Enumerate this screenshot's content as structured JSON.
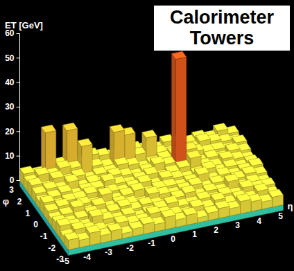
{
  "chart_data": {
    "type": "lego",
    "title": "Calorimeter Towers",
    "xlabel": "η",
    "ylabel": "φ",
    "zlabel": "ET [GeV]",
    "xlim": [
      -5,
      5
    ],
    "xticks": [
      -5,
      -4,
      -3,
      -2,
      -1,
      0,
      1,
      2,
      3,
      4,
      5
    ],
    "ylim": [
      -3,
      3
    ],
    "yticks": [
      -3,
      -2,
      -1,
      0,
      1,
      2,
      3
    ],
    "zlim": [
      0,
      60
    ],
    "zticks": [
      0,
      10,
      20,
      30,
      40,
      50,
      60
    ],
    "x_edges": [
      -5,
      -4.5,
      -4,
      -3.5,
      -3,
      -2.5,
      -2,
      -1.5,
      -1,
      -0.5,
      0,
      0.5,
      1,
      1.5,
      2,
      2.5,
      3,
      3.5,
      4,
      4.5,
      5
    ],
    "y_edges": [
      -3,
      -2.5,
      -2,
      -1.5,
      -1,
      -0.5,
      0,
      0.5,
      1,
      1.5,
      2,
      2.5,
      3
    ],
    "values": [
      [
        4,
        3,
        5,
        3,
        4,
        2,
        3,
        4,
        3,
        5,
        3,
        4,
        2,
        3,
        4,
        3,
        5,
        4,
        3,
        4
      ],
      [
        3,
        5,
        4,
        3,
        2,
        4,
        3,
        3,
        5,
        4,
        3,
        2,
        4,
        3,
        5,
        3,
        4,
        3,
        5,
        3
      ],
      [
        5,
        4,
        3,
        6,
        4,
        3,
        4,
        2,
        3,
        4,
        5,
        3,
        3,
        4,
        3,
        4,
        3,
        5,
        4,
        4
      ],
      [
        4,
        3,
        4,
        5,
        3,
        4,
        5,
        3,
        4,
        3,
        2,
        4,
        5,
        3,
        4,
        3,
        6,
        3,
        4,
        3
      ],
      [
        3,
        4,
        6,
        3,
        5,
        3,
        4,
        3,
        2,
        5,
        4,
        3,
        4,
        5,
        3,
        4,
        3,
        4,
        5,
        4
      ],
      [
        4,
        5,
        3,
        4,
        3,
        6,
        3,
        4,
        5,
        3,
        4,
        4,
        3,
        4,
        6,
        3,
        4,
        3,
        4,
        5
      ],
      [
        5,
        3,
        4,
        4,
        5,
        3,
        4,
        3,
        4,
        5,
        3,
        5,
        4,
        3,
        4,
        5,
        3,
        4,
        3,
        4
      ],
      [
        3,
        4,
        5,
        3,
        4,
        4,
        6,
        4,
        3,
        4,
        5,
        3,
        4,
        5,
        8,
        4,
        3,
        5,
        4,
        3
      ],
      [
        4,
        5,
        4,
        6,
        3,
        4,
        3,
        5,
        4,
        3,
        4,
        6,
        5,
        47,
        9,
        3,
        4,
        3,
        5,
        4
      ],
      [
        5,
        3,
        6,
        4,
        5,
        3,
        4,
        4,
        6,
        5,
        3,
        4,
        5,
        6,
        4,
        5,
        4,
        4,
        3,
        5
      ],
      [
        4,
        6,
        5,
        7,
        6,
        14,
        5,
        4,
        17,
        15,
        6,
        12,
        5,
        4,
        5,
        4,
        6,
        5,
        4,
        3
      ],
      [
        5,
        4,
        20,
        6,
        19,
        5,
        7,
        6,
        5,
        8,
        6,
        5,
        4,
        6,
        5,
        4,
        5,
        4,
        6,
        4
      ]
    ]
  }
}
